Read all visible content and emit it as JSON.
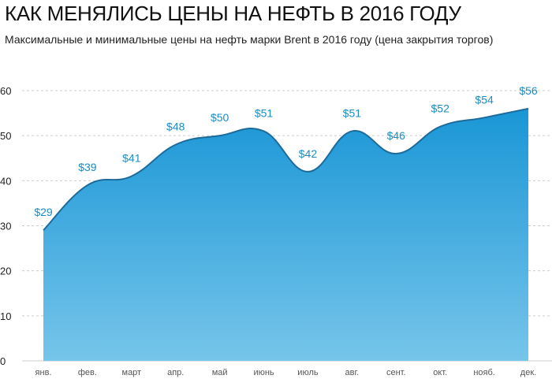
{
  "header": {
    "title": "КАК МЕНЯЛИСЬ ЦЕНЫ НА НЕФТЬ В 2016 ГОДУ",
    "subtitle": "Максимальные и минимальные цены на нефть марки Brent в 2016 году (цена закрытия торгов)"
  },
  "chart_data": {
    "type": "area",
    "title": "КАК МЕНЯЛИСЬ ЦЕНЫ НА НЕФТЬ В 2016 ГОДУ",
    "subtitle": "Максимальные и минимальные цены на нефть марки Brent в 2016 году (цена закрытия торгов)",
    "xlabel": "",
    "ylabel": "",
    "categories": [
      "янв.",
      "фев.",
      "март",
      "апр.",
      "май",
      "июнь",
      "июль",
      "авг.",
      "сент.",
      "окт.",
      "нояб.",
      "дек."
    ],
    "values": [
      29,
      39,
      41,
      48,
      50,
      51,
      42,
      51,
      46,
      52,
      54,
      56
    ],
    "data_labels": [
      "$29",
      "$39",
      "$41",
      "$48",
      "$50",
      "$51",
      "$42",
      "$51",
      "$46",
      "$52",
      "$54",
      "$56"
    ],
    "yticks": [
      0,
      10,
      20,
      30,
      40,
      50,
      60
    ],
    "ylim": [
      0,
      60
    ],
    "grid": "horizontal-dashed",
    "legend": "none",
    "colors": {
      "fill_top": "#1a96d6",
      "fill_bottom": "#76c5ea",
      "line": "#1d6b99",
      "label": "#1a8cc4",
      "grid": "#cccccc"
    }
  }
}
